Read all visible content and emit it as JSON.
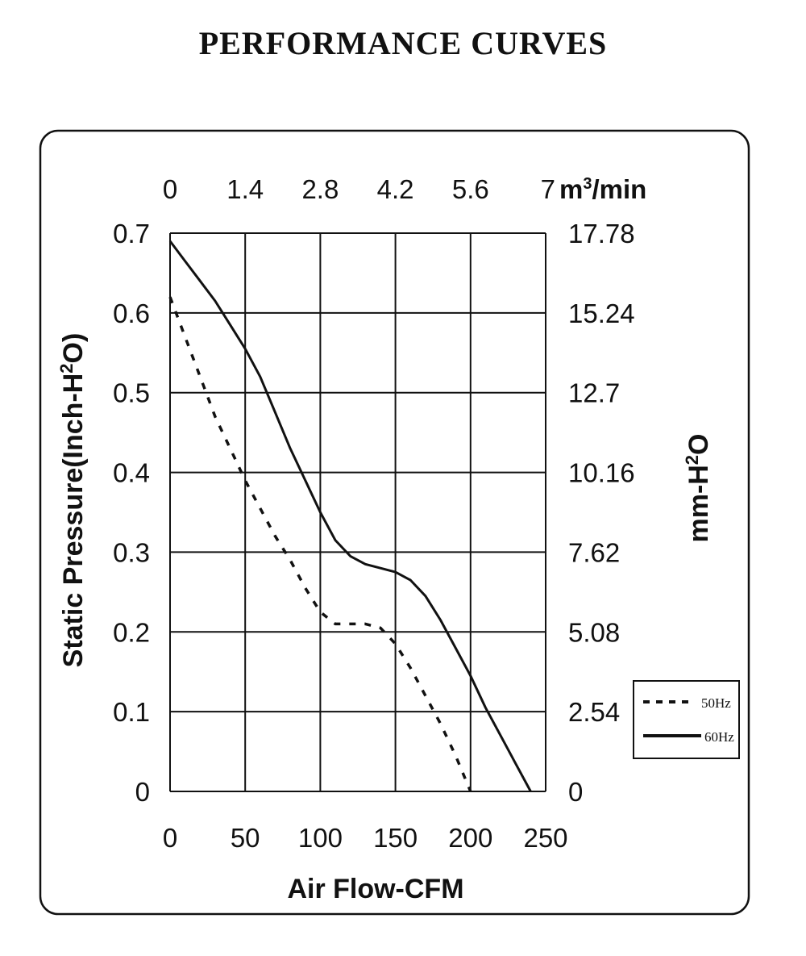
{
  "title": "PERFORMANCE  CURVES",
  "chart_data": {
    "type": "line",
    "x": [
      0,
      10,
      20,
      30,
      40,
      50,
      60,
      70,
      80,
      90,
      100,
      110,
      120,
      130,
      140,
      150,
      160,
      170,
      180,
      190,
      200,
      210,
      220,
      230,
      240
    ],
    "xlabel": "Air Flow-CFM",
    "ylabel_left": "Static Pressure(Inch-H2O)",
    "ylabel_right": "mm-H2O",
    "top_axis_unit": "m³/min",
    "xlim": [
      0,
      250
    ],
    "ylim": [
      0,
      0.7
    ],
    "x_ticks": [
      "0",
      "50",
      "100",
      "150",
      "200",
      "250"
    ],
    "x_ticks_top": [
      "0",
      "1.4",
      "2.8",
      "4.2",
      "5.6",
      "7"
    ],
    "y_ticks_left": [
      "0",
      "0.1",
      "0.2",
      "0.3",
      "0.4",
      "0.5",
      "0.6",
      "0.7"
    ],
    "y_ticks_right": [
      "0",
      "2.54",
      "5.08",
      "7.62",
      "10.16",
      "12.7",
      "15.24",
      "17.78"
    ],
    "grid": true,
    "legend_position": "right",
    "series": [
      {
        "name": "50Hz",
        "style": "dotted",
        "x": [
          0,
          10,
          20,
          30,
          40,
          50,
          60,
          70,
          80,
          90,
          100,
          110,
          120,
          130,
          140,
          150,
          160,
          170,
          180,
          190,
          200
        ],
        "values": [
          0.62,
          0.57,
          0.52,
          0.47,
          0.43,
          0.39,
          0.355,
          0.32,
          0.29,
          0.255,
          0.225,
          0.21,
          0.21,
          0.21,
          0.205,
          0.185,
          0.155,
          0.12,
          0.085,
          0.045,
          0.0
        ]
      },
      {
        "name": "60Hz",
        "style": "solid",
        "x": [
          0,
          10,
          20,
          30,
          40,
          50,
          60,
          70,
          80,
          90,
          100,
          110,
          120,
          130,
          140,
          150,
          160,
          170,
          180,
          190,
          200,
          210,
          220,
          230,
          240
        ],
        "values": [
          0.69,
          0.665,
          0.64,
          0.615,
          0.585,
          0.555,
          0.52,
          0.475,
          0.43,
          0.39,
          0.35,
          0.315,
          0.295,
          0.285,
          0.28,
          0.275,
          0.265,
          0.245,
          0.215,
          0.18,
          0.145,
          0.105,
          0.07,
          0.035,
          0.0
        ]
      }
    ]
  }
}
